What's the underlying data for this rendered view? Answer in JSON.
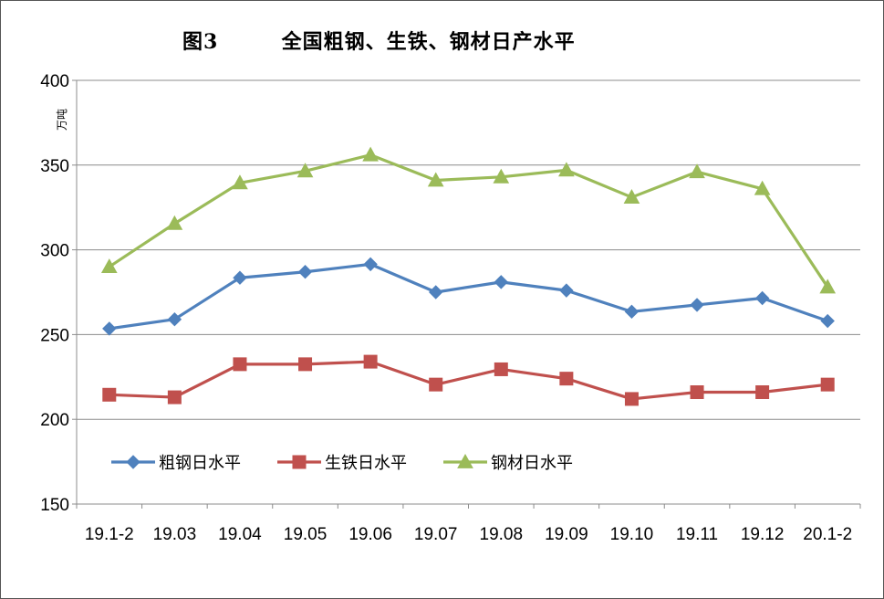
{
  "chart_data": {
    "type": "line",
    "title": "图3        全国粗钢、生铁、钢材日产水平",
    "ylabel": "万吨",
    "xlabel": "",
    "ylim": [
      150,
      400
    ],
    "yticks": [
      150,
      200,
      250,
      300,
      350,
      400
    ],
    "grid": true,
    "legend_placement": "lower-left-inside",
    "categories": [
      "19.1-2",
      "19.03",
      "19.04",
      "19.05",
      "19.06",
      "19.07",
      "19.08",
      "19.09",
      "19.10",
      "19.11",
      "19.12",
      "20.1-2"
    ],
    "series": [
      {
        "name": "粗钢日水平",
        "color": "#4F81BD",
        "marker": "diamond",
        "values": [
          253.5,
          259,
          283.5,
          287,
          291.5,
          275,
          281,
          276,
          263.5,
          267.5,
          271.5,
          258
        ]
      },
      {
        "name": "生铁日水平",
        "color": "#C0504D",
        "marker": "square",
        "values": [
          214.5,
          213,
          232.5,
          232.5,
          234,
          220.5,
          229.5,
          224,
          212,
          216,
          216,
          220.5
        ]
      },
      {
        "name": "钢材日水平",
        "color": "#9BBB59",
        "marker": "triangle",
        "values": [
          290,
          315.5,
          339.5,
          346.5,
          356,
          341,
          343,
          347,
          331,
          346,
          336,
          278
        ]
      }
    ]
  }
}
